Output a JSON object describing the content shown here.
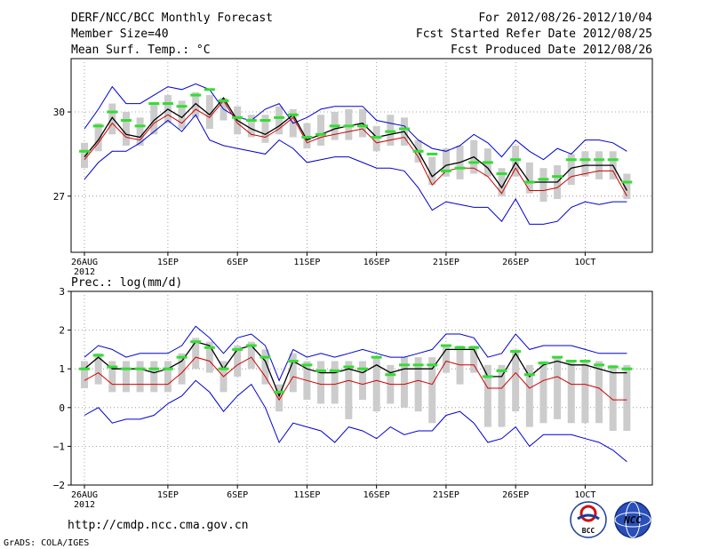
{
  "header": {
    "title": "DERF/NCC/BCC Monthly Forecast",
    "member_size": "Member Size=40",
    "variable": "Mean Surf. Temp.: °C",
    "period": "For 2012/08/26-2012/10/04",
    "refer_date": "Fcst Started Refer Date 2012/08/25",
    "produced_date": "Fcst Produced Date 2012/08/26"
  },
  "footer": {
    "url": "http://cmdp.ncc.cma.gov.cn",
    "credit": "GrADS: COLA/IGES",
    "logo_bcc": "BCC",
    "logo_ncc": "NCC"
  },
  "colors": {
    "envelope": "#0000d0",
    "mean": "#000000",
    "median": "#d00000",
    "reference": "#33dd33",
    "box": "#cccccc",
    "grid": "#888888"
  },
  "chart_data": [
    {
      "type": "line",
      "title": "Mean Surf. Temp.: °C",
      "x": [
        "26AUG",
        "27AUG",
        "28AUG",
        "29AUG",
        "30AUG",
        "31AUG",
        "1SEP",
        "2SEP",
        "3SEP",
        "4SEP",
        "5SEP",
        "6SEP",
        "7SEP",
        "8SEP",
        "9SEP",
        "10SEP",
        "11SEP",
        "12SEP",
        "13SEP",
        "14SEP",
        "15SEP",
        "16SEP",
        "17SEP",
        "18SEP",
        "19SEP",
        "20SEP",
        "21SEP",
        "22SEP",
        "23SEP",
        "24SEP",
        "25SEP",
        "26SEP",
        "27SEP",
        "28SEP",
        "29SEP",
        "30SEP",
        "1OCT",
        "2OCT",
        "3OCT",
        "4OCT"
      ],
      "xticks": [
        {
          "index": 0,
          "label": "26AUG",
          "sublabel": "2012"
        },
        {
          "index": 6,
          "label": "1SEP"
        },
        {
          "index": 11,
          "label": "6SEP"
        },
        {
          "index": 16,
          "label": "11SEP"
        },
        {
          "index": 21,
          "label": "16SEP"
        },
        {
          "index": 26,
          "label": "21SEP"
        },
        {
          "index": 31,
          "label": "26SEP"
        },
        {
          "index": 36,
          "label": "1OCT"
        }
      ],
      "ylim": [
        25.0,
        31.9
      ],
      "yticks": [
        {
          "value": 27,
          "label": "27"
        },
        {
          "value": 30,
          "label": "30"
        }
      ],
      "series": [
        {
          "name": "max",
          "values": [
            29.4,
            30.1,
            30.9,
            30.3,
            30.3,
            30.6,
            30.9,
            30.8,
            31.0,
            30.8,
            30.1,
            29.8,
            29.7,
            30.1,
            30.3,
            29.6,
            29.8,
            30.1,
            30.2,
            30.2,
            30.2,
            29.7,
            29.6,
            29.5,
            29.0,
            28.7,
            28.6,
            28.8,
            29.2,
            28.9,
            28.4,
            29.0,
            28.6,
            28.3,
            28.7,
            28.5,
            29.0,
            29.0,
            28.9,
            28.6
          ]
        },
        {
          "name": "mean",
          "values": [
            28.4,
            29.0,
            29.8,
            29.2,
            29.1,
            29.7,
            30.1,
            29.8,
            30.3,
            29.9,
            30.5,
            29.7,
            29.4,
            29.2,
            29.5,
            29.9,
            29.0,
            29.2,
            29.4,
            29.5,
            29.6,
            29.1,
            29.2,
            29.3,
            28.6,
            27.7,
            28.1,
            28.2,
            28.4,
            28.0,
            27.3,
            28.2,
            27.5,
            27.5,
            27.5,
            28.0,
            28.1,
            28.1,
            28.1,
            27.2
          ]
        },
        {
          "name": "median",
          "values": [
            28.3,
            28.9,
            29.6,
            29.1,
            29.0,
            29.6,
            29.9,
            29.6,
            30.1,
            29.8,
            30.4,
            29.6,
            29.2,
            29.1,
            29.4,
            29.8,
            28.9,
            29.1,
            29.2,
            29.3,
            29.4,
            28.9,
            29.0,
            29.1,
            28.4,
            27.4,
            27.9,
            28.0,
            28.0,
            27.7,
            27.1,
            28.0,
            27.2,
            27.2,
            27.3,
            27.7,
            27.8,
            27.9,
            27.9,
            27.0
          ]
        },
        {
          "name": "min",
          "values": [
            27.6,
            28.2,
            28.6,
            28.6,
            28.9,
            29.3,
            29.7,
            29.3,
            29.9,
            29.0,
            28.8,
            28.7,
            28.6,
            28.5,
            29.0,
            28.7,
            28.2,
            28.3,
            28.4,
            28.4,
            28.2,
            28.0,
            28.0,
            27.9,
            27.3,
            26.5,
            26.8,
            26.7,
            26.6,
            26.6,
            26.1,
            26.9,
            26.0,
            26.0,
            26.1,
            26.6,
            26.8,
            26.7,
            26.8,
            26.8
          ]
        },
        {
          "name": "reference",
          "values": [
            28.6,
            29.5,
            30.0,
            29.7,
            29.5,
            30.3,
            30.3,
            30.2,
            30.6,
            30.8,
            30.4,
            29.8,
            29.7,
            29.7,
            29.8,
            29.9,
            29.1,
            29.2,
            29.5,
            29.5,
            29.5,
            29.1,
            29.3,
            29.4,
            28.6,
            28.5,
            27.9,
            28.0,
            28.2,
            28.2,
            27.8,
            28.3,
            27.5,
            27.6,
            27.7,
            28.3,
            28.3,
            28.3,
            28.3,
            27.5
          ]
        }
      ],
      "boxes": [
        [
          28.0,
          28.9
        ],
        [
          28.6,
          29.6
        ],
        [
          29.2,
          30.3
        ],
        [
          28.8,
          30.0
        ],
        [
          28.8,
          29.8
        ],
        [
          29.2,
          30.3
        ],
        [
          29.6,
          30.6
        ],
        [
          29.4,
          30.4
        ],
        [
          29.8,
          30.7
        ],
        [
          29.4,
          30.6
        ],
        [
          29.7,
          30.5
        ],
        [
          29.2,
          30.2
        ],
        [
          29.1,
          29.9
        ],
        [
          28.9,
          29.9
        ],
        [
          29.2,
          30.2
        ],
        [
          29.1,
          30.1
        ],
        [
          28.7,
          29.6
        ],
        [
          28.8,
          29.9
        ],
        [
          29.0,
          30.0
        ],
        [
          29.0,
          30.1
        ],
        [
          29.1,
          30.1
        ],
        [
          28.6,
          29.5
        ],
        [
          28.8,
          29.9
        ],
        [
          28.8,
          29.8
        ],
        [
          28.2,
          29.0
        ],
        [
          27.4,
          28.4
        ],
        [
          27.7,
          28.7
        ],
        [
          27.6,
          28.8
        ],
        [
          27.8,
          29.0
        ],
        [
          27.7,
          28.7
        ],
        [
          27.0,
          28.0
        ],
        [
          27.7,
          28.8
        ],
        [
          27.1,
          28.2
        ],
        [
          26.8,
          28.0
        ],
        [
          26.9,
          28.1
        ],
        [
          27.4,
          28.5
        ],
        [
          27.7,
          28.6
        ],
        [
          27.6,
          28.6
        ],
        [
          27.6,
          28.6
        ],
        [
          26.9,
          27.8
        ]
      ]
    },
    {
      "type": "line",
      "title": "Prec.: log(mm/d)",
      "x": [
        "26AUG",
        "27AUG",
        "28AUG",
        "29AUG",
        "30AUG",
        "31AUG",
        "1SEP",
        "2SEP",
        "3SEP",
        "4SEP",
        "5SEP",
        "6SEP",
        "7SEP",
        "8SEP",
        "9SEP",
        "10SEP",
        "11SEP",
        "12SEP",
        "13SEP",
        "14SEP",
        "15SEP",
        "16SEP",
        "17SEP",
        "18SEP",
        "19SEP",
        "20SEP",
        "21SEP",
        "22SEP",
        "23SEP",
        "24SEP",
        "25SEP",
        "26SEP",
        "27SEP",
        "28SEP",
        "29SEP",
        "30SEP",
        "1OCT",
        "2OCT",
        "3OCT",
        "4OCT"
      ],
      "xticks": [
        {
          "index": 0,
          "label": "26AUG",
          "sublabel": "2012"
        },
        {
          "index": 6,
          "label": "1SEP"
        },
        {
          "index": 11,
          "label": "6SEP"
        },
        {
          "index": 16,
          "label": "11SEP"
        },
        {
          "index": 21,
          "label": "16SEP"
        },
        {
          "index": 26,
          "label": "21SEP"
        },
        {
          "index": 31,
          "label": "26SEP"
        },
        {
          "index": 36,
          "label": "1OCT"
        }
      ],
      "ylim": [
        -2,
        3
      ],
      "yticks": [
        {
          "value": -2,
          "label": "−2"
        },
        {
          "value": -1,
          "label": "−1"
        },
        {
          "value": 0,
          "label": "0"
        },
        {
          "value": 1,
          "label": "1"
        },
        {
          "value": 2,
          "label": "2"
        },
        {
          "value": 3,
          "label": "3"
        }
      ],
      "series": [
        {
          "name": "max",
          "values": [
            1.3,
            1.6,
            1.5,
            1.3,
            1.4,
            1.4,
            1.4,
            1.6,
            2.1,
            1.8,
            1.4,
            1.8,
            1.9,
            1.6,
            0.7,
            1.5,
            1.3,
            1.4,
            1.3,
            1.4,
            1.5,
            1.4,
            1.3,
            1.3,
            1.4,
            1.5,
            1.9,
            1.9,
            1.8,
            1.3,
            1.4,
            1.9,
            1.5,
            1.6,
            1.6,
            1.6,
            1.5,
            1.4,
            1.4,
            1.4
          ]
        },
        {
          "name": "mean",
          "values": [
            1.0,
            1.3,
            1.0,
            1.0,
            1.0,
            0.9,
            1.0,
            1.2,
            1.7,
            1.6,
            1.0,
            1.5,
            1.6,
            1.2,
            0.3,
            1.2,
            1.0,
            0.9,
            0.9,
            1.0,
            0.9,
            1.1,
            0.9,
            1.0,
            1.0,
            1.0,
            1.5,
            1.5,
            1.5,
            0.8,
            0.8,
            1.4,
            0.8,
            1.1,
            1.2,
            1.1,
            1.1,
            1.0,
            0.9,
            0.9
          ]
        },
        {
          "name": "median",
          "values": [
            0.7,
            0.9,
            0.6,
            0.6,
            0.6,
            0.6,
            0.6,
            0.9,
            1.3,
            1.2,
            0.8,
            1.1,
            1.3,
            0.8,
            0.2,
            0.8,
            0.7,
            0.6,
            0.6,
            0.7,
            0.6,
            0.7,
            0.6,
            0.6,
            0.7,
            0.6,
            1.2,
            1.1,
            1.1,
            0.5,
            0.5,
            0.9,
            0.5,
            0.7,
            0.8,
            0.6,
            0.6,
            0.5,
            0.2,
            0.2
          ]
        },
        {
          "name": "min",
          "values": [
            -0.2,
            0.0,
            -0.4,
            -0.3,
            -0.3,
            -0.2,
            0.1,
            0.3,
            0.7,
            0.4,
            -0.1,
            0.3,
            0.6,
            0.0,
            -0.9,
            -0.4,
            -0.5,
            -0.6,
            -0.9,
            -0.5,
            -0.6,
            -0.8,
            -0.5,
            -0.7,
            -0.6,
            -0.6,
            -0.2,
            -0.1,
            -0.4,
            -0.9,
            -0.8,
            -0.5,
            -1.0,
            -0.7,
            -0.7,
            -0.7,
            -0.8,
            -0.9,
            -1.1,
            -1.4
          ]
        },
        {
          "name": "reference",
          "values": [
            1.0,
            1.35,
            1.05,
            1.0,
            1.0,
            1.0,
            1.0,
            1.3,
            1.7,
            1.55,
            1.0,
            1.5,
            1.6,
            1.3,
            0.4,
            1.2,
            1.1,
            0.95,
            0.95,
            1.05,
            1.0,
            1.3,
            0.85,
            1.1,
            1.1,
            1.1,
            1.6,
            1.55,
            1.55,
            0.8,
            0.95,
            1.45,
            0.85,
            1.15,
            1.3,
            1.2,
            1.2,
            1.1,
            1.05,
            1.0
          ]
        }
      ],
      "boxes": [
        [
          0.5,
          1.2
        ],
        [
          0.6,
          1.4
        ],
        [
          0.4,
          1.2
        ],
        [
          0.4,
          1.2
        ],
        [
          0.4,
          1.2
        ],
        [
          0.4,
          1.2
        ],
        [
          0.4,
          1.2
        ],
        [
          0.6,
          1.4
        ],
        [
          1.0,
          1.8
        ],
        [
          0.9,
          1.7
        ],
        [
          0.4,
          1.2
        ],
        [
          0.8,
          1.6
        ],
        [
          1.0,
          1.7
        ],
        [
          0.6,
          1.5
        ],
        [
          -0.1,
          0.6
        ],
        [
          0.4,
          1.4
        ],
        [
          0.2,
          1.2
        ],
        [
          0.1,
          1.2
        ],
        [
          0.1,
          1.2
        ],
        [
          -0.3,
          1.2
        ],
        [
          0.2,
          1.2
        ],
        [
          -0.1,
          1.3
        ],
        [
          0.1,
          1.1
        ],
        [
          0.0,
          1.3
        ],
        [
          -0.1,
          1.3
        ],
        [
          -0.4,
          1.3
        ],
        [
          0.9,
          1.6
        ],
        [
          0.6,
          1.6
        ],
        [
          0.9,
          1.6
        ],
        [
          -0.5,
          1.1
        ],
        [
          -0.5,
          1.1
        ],
        [
          -0.1,
          1.5
        ],
        [
          -0.5,
          1.1
        ],
        [
          -0.4,
          1.2
        ],
        [
          -0.3,
          1.3
        ],
        [
          -0.4,
          1.2
        ],
        [
          -0.4,
          1.2
        ],
        [
          -0.4,
          1.2
        ],
        [
          -0.6,
          1.1
        ],
        [
          -0.6,
          1.1
        ]
      ]
    }
  ]
}
